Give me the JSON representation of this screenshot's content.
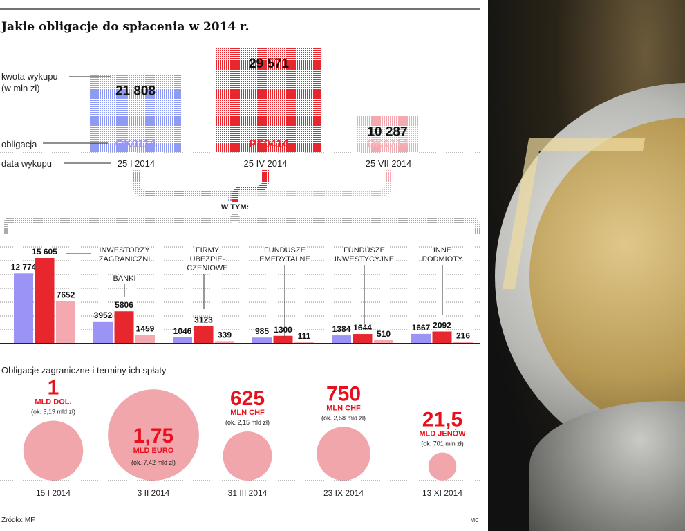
{
  "title": "Jakie obligacje do spłacenia w 2014 r.",
  "colors": {
    "ok0114": "#9b93f5",
    "ps0414": "#e8262d",
    "ok0714": "#f4a9b0",
    "bubble": "#f1a6ac",
    "accent_red": "#e8101c"
  },
  "labels": {
    "amount": "kwota wykupu",
    "amount_unit": "(w mln zł)",
    "bond": "obligacja",
    "date": "data wykupu",
    "of_which": "W TYM:"
  },
  "chart_data": [
    {
      "type": "bar",
      "title": "Jakie obligacje do spłacenia w 2014 r.",
      "categories": [
        "OK0114",
        "PS0414",
        "OK0714"
      ],
      "dates": [
        "25 I 2014",
        "25 IV 2014",
        "25 VII 2014"
      ],
      "values": [
        21808,
        29571,
        10287
      ],
      "value_labels": [
        "21 808",
        "29 571",
        "10 287"
      ],
      "ylabel": "kwota wykupu (w mln zł)"
    },
    {
      "type": "bar",
      "categories": [
        "INWESTORZY ZAGRANICZNI",
        "BANKI",
        "FIRMY UBEZPIE-CZENIOWE",
        "FUNDUSZE EMERYTALNE",
        "FUNDUSZE INWESTYCYJNE",
        "INNE PODMIOTY"
      ],
      "category_lines": [
        [
          "INWESTORZY",
          "ZAGRANICZNI"
        ],
        [
          "BANKI"
        ],
        [
          "FIRMY",
          "UBEZPIE-",
          "CZENIOWE"
        ],
        [
          "FUNDUSZE",
          "EMERYTALNE"
        ],
        [
          "FUNDUSZE",
          "INWESTYCYJNE"
        ],
        [
          "INNE",
          "PODMIOTY"
        ]
      ],
      "series": [
        {
          "values": [
            12774,
            3952,
            1046,
            985,
            1384,
            1667
          ],
          "labels": [
            "12 774",
            "3952",
            "1046",
            "985",
            "1384",
            "1667"
          ]
        },
        {
          "values": [
            15605,
            5806,
            3123,
            1300,
            1644,
            2092
          ],
          "labels": [
            "15 605",
            "5806",
            "3123",
            "1300",
            "1644",
            "2092"
          ]
        },
        {
          "values": [
            7652,
            1459,
            339,
            111,
            510,
            216
          ],
          "labels": [
            "7652",
            "1459",
            "339",
            "111",
            "510",
            "216"
          ]
        }
      ],
      "grid": true
    },
    {
      "type": "scatter",
      "title": "Obligacje zagraniczne i terminy ich spłaty",
      "items": [
        {
          "amount": "1",
          "unit": "MLD DOL.",
          "pln": "(ok. 3,19 mld zł)",
          "date": "15 I 2014",
          "pln_bn": 3.19
        },
        {
          "amount": "1,75",
          "unit": "MLD EURO",
          "pln": "(ok. 7,42 mld zł)",
          "date": "3 II 2014",
          "pln_bn": 7.42
        },
        {
          "amount": "625",
          "unit": "MLN CHF",
          "pln": "(ok. 2,15 mld zł)",
          "date": "31 III 2014",
          "pln_bn": 2.15
        },
        {
          "amount": "750",
          "unit": "MLN CHF",
          "pln": "(ok. 2,58 mld zł)",
          "date": "23 IX 2014",
          "pln_bn": 2.58
        },
        {
          "amount": "21,5",
          "unit": "MLD JENÓW",
          "pln": "(ok. 701 mln zł)",
          "date": "13 XI 2014",
          "pln_bn": 0.701
        }
      ]
    }
  ],
  "footer": {
    "source": "Źródło: MF",
    "author": "MC"
  }
}
